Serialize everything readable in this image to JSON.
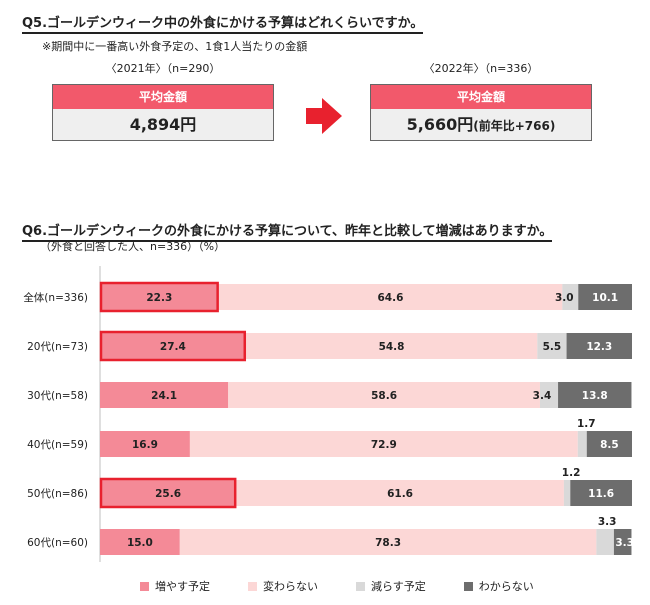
{
  "q5": {
    "title": "Q5.ゴールデンウィーク中の外食にかける予算はどれくらいですか。",
    "note": "※期間中に一番高い外食予定の、1食1人当たりの金額",
    "cards": [
      {
        "year_label": "〈2021年〉（n=290）",
        "header": "平均金額",
        "value": "4,894円",
        "sub": ""
      },
      {
        "year_label": "〈2022年〉（n=336）",
        "header": "平均金額",
        "value": "5,660円",
        "sub": "(前年比+766)"
      }
    ]
  },
  "q6": {
    "title": "Q6.ゴールデンウィークの外食にかける予算について、昨年と比較して増減はありますか。",
    "note": "（外食と回答した人、n=336）（%）"
  },
  "colors": {
    "accent": "#e8323c",
    "increase": "#f48a97",
    "same": "#fcd7d6",
    "decrease": "#d9d9d9",
    "unknown": "#6d6d6d",
    "highlight_border": "#e8212e"
  },
  "chart_data": {
    "type": "bar",
    "orientation": "horizontal",
    "stacked": true,
    "categories": [
      "全体(n=336)",
      "20代(n=73)",
      "30代(n=58)",
      "40代(n=59)",
      "50代(n=86)",
      "60代(n=60)"
    ],
    "series": [
      {
        "name": "増やす予定",
        "values": [
          22.3,
          27.4,
          24.1,
          16.9,
          25.6,
          15.0
        ],
        "labels": [
          "22.3",
          "27.4",
          "24.1",
          "16.9",
          "25.6",
          "15.0"
        ]
      },
      {
        "name": "変わらない",
        "values": [
          64.6,
          54.8,
          58.6,
          72.9,
          61.6,
          78.3
        ],
        "labels": [
          "64.6",
          "54.8",
          "58.6",
          "72.9",
          "61.6",
          "78.3"
        ]
      },
      {
        "name": "減らす予定",
        "values": [
          3.0,
          5.5,
          3.4,
          1.7,
          1.2,
          3.3
        ],
        "labels": [
          "3.0",
          "5.5",
          "3.4",
          "1.7",
          "1.2",
          "3.3"
        ]
      },
      {
        "name": "わからない",
        "values": [
          10.1,
          12.3,
          13.8,
          8.5,
          11.6,
          3.3
        ],
        "labels": [
          "10.1",
          "12.3",
          "13.8",
          "8.5",
          "11.6",
          "3.3"
        ]
      }
    ],
    "highlighted_categories": [
      "全体(n=336)",
      "20代(n=73)",
      "50代(n=86)"
    ],
    "xlim": [
      0,
      100
    ],
    "legend_position": "bottom"
  }
}
